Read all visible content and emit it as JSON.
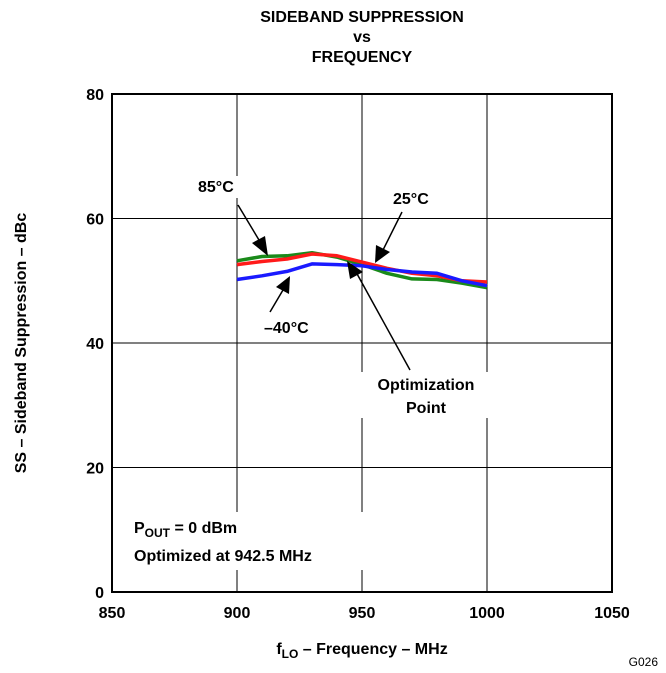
{
  "chart_data": {
    "type": "line",
    "title": [
      "SIDEBAND SUPPRESSION",
      "vs",
      "FREQUENCY"
    ],
    "xlabel": {
      "main": "f",
      "sub": "LO",
      "rest": " – Frequency – MHz"
    },
    "ylabel": "SS – Sideband Suppression – dBc",
    "xlim": [
      850,
      1050
    ],
    "ylim": [
      0,
      80
    ],
    "x_ticks": [
      850,
      900,
      950,
      1000,
      1050
    ],
    "y_ticks": [
      0,
      20,
      40,
      60,
      80
    ],
    "grid": true,
    "series": [
      {
        "name": "85°C",
        "color": "#1a8a1a",
        "x": [
          900,
          910,
          920,
          930,
          940,
          950,
          960,
          970,
          980,
          990,
          1000
        ],
        "y": [
          53.2,
          53.9,
          54.0,
          54.5,
          53.8,
          52.6,
          51.2,
          50.3,
          50.2,
          49.6,
          48.9
        ]
      },
      {
        "name": "25°C",
        "color": "#ff1a1a",
        "x": [
          900,
          910,
          920,
          930,
          940,
          950,
          960,
          970,
          980,
          990,
          1000
        ],
        "y": [
          52.6,
          53.1,
          53.5,
          54.3,
          54.0,
          53.0,
          52.0,
          51.2,
          50.8,
          50.0,
          49.8
        ]
      },
      {
        "name": "–40°C",
        "color": "#1a1aff",
        "x": [
          900,
          910,
          920,
          930,
          940,
          950,
          960,
          970,
          980,
          990,
          1000
        ],
        "y": [
          50.2,
          50.8,
          51.5,
          52.7,
          52.6,
          52.4,
          51.8,
          51.4,
          51.2,
          50.0,
          49.2
        ]
      }
    ],
    "annotations": [
      {
        "id": "label-85c",
        "text": "85°C"
      },
      {
        "id": "label-25c",
        "text": "25°C"
      },
      {
        "id": "label-m40c",
        "text": "–40°C"
      },
      {
        "id": "label-optimization",
        "lines": [
          "Optimization",
          "Point"
        ]
      }
    ],
    "conditions": {
      "pout": {
        "main": "P",
        "sub": "OUT",
        "rest": " = 0 dBm"
      },
      "optimized": "Optimized at 942.5 MHz"
    },
    "figure_id": "G026"
  }
}
